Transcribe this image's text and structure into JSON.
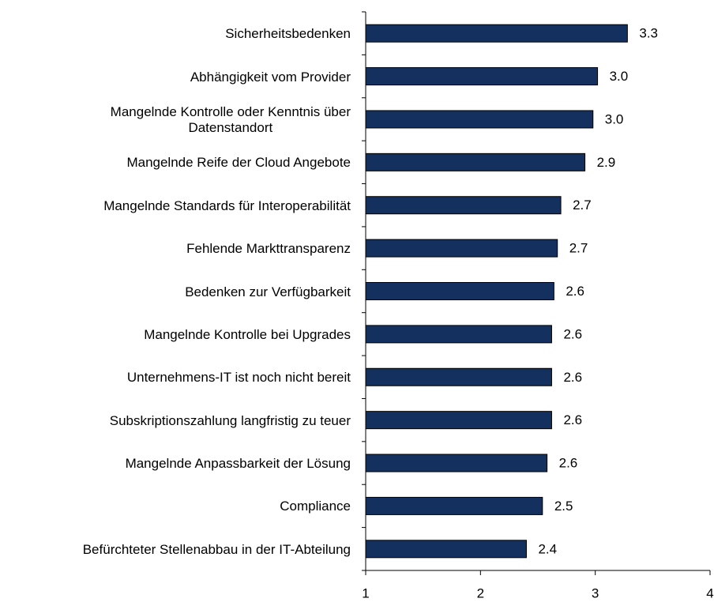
{
  "chart_data": {
    "type": "barh",
    "categories": [
      "Sicherheitsbedenken",
      "Abhängigkeit vom Provider",
      "Mangelnde Kontrolle oder Kenntnis über\nDatenstandort",
      "Mangelnde Reife der Cloud Angebote",
      "Mangelnde Standards für Interoperabilität",
      "Fehlende Markttransparenz",
      "Bedenken zur Verfügbarkeit",
      "Mangelnde Kontrolle bei Upgrades",
      "Unternehmens-IT ist noch nicht bereit",
      "Subskriptionszahlung langfristig zu teuer",
      "Mangelnde Anpassbarkeit der Lösung",
      "Compliance",
      "Befürchteter Stellenabbau in der IT-Abteilung"
    ],
    "values": [
      3.28,
      3.02,
      2.98,
      2.91,
      2.7,
      2.67,
      2.64,
      2.62,
      2.62,
      2.62,
      2.58,
      2.54,
      2.4
    ],
    "value_labels": [
      "3.3",
      "3.0",
      "3.0",
      "2.9",
      "2.7",
      "2.7",
      "2.6",
      "2.6",
      "2.6",
      "2.6",
      "2.6",
      "2.5",
      "2.4"
    ],
    "color": "#14305e",
    "xlim": [
      1,
      4
    ],
    "xticks": [
      1,
      2,
      3,
      4
    ]
  }
}
